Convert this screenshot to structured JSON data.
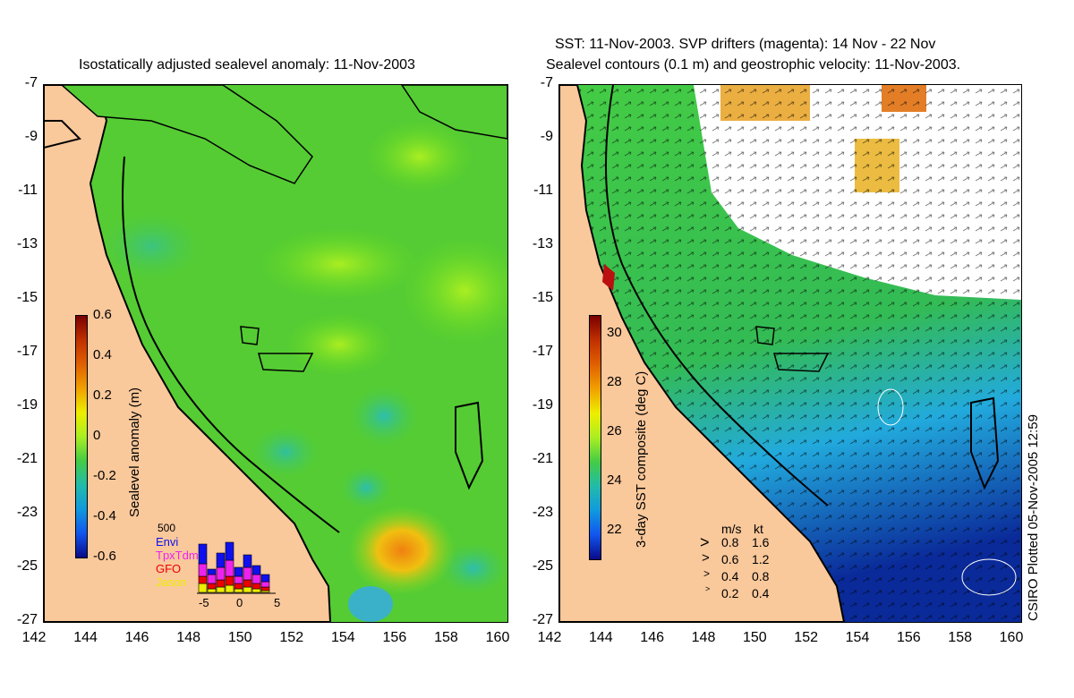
{
  "left_map": {
    "title": "Isostatically adjusted sealevel anomaly: 11-Nov-2003",
    "y_ticks": [
      "-7",
      "-9",
      "-11",
      "-13",
      "-15",
      "-17",
      "-19",
      "-21",
      "-23",
      "-25",
      "-27"
    ],
    "x_ticks": [
      "142",
      "144",
      "146",
      "148",
      "150",
      "152",
      "154",
      "156",
      "158",
      "160"
    ],
    "colorbar": {
      "label": "Sealevel anomaly (m)",
      "ticks": [
        "0.6",
        "0.4",
        "0.2",
        "0",
        "-0.2",
        "-0.4",
        "-0.6"
      ]
    },
    "inset": {
      "top_label": "500",
      "legend": [
        {
          "label": "Envi",
          "color": "#1010ee"
        },
        {
          "label": "TpxTdm",
          "color": "#ee22ee"
        },
        {
          "label": "GFO",
          "color": "#ee0000"
        },
        {
          "label": "Jason",
          "color": "#eeee00"
        }
      ],
      "x_ticks": [
        "-5",
        "0",
        "5"
      ]
    }
  },
  "right_map": {
    "title_line1": "SST: 11-Nov-2003. SVP drifters (magenta): 14 Nov - 22 Nov",
    "title_line2": "Sealevel contours (0.1 m) and geostrophic velocity: 11-Nov-2003.",
    "y_ticks": [
      "-7",
      "-9",
      "-11",
      "-13",
      "-15",
      "-17",
      "-19",
      "-21",
      "-23",
      "-25",
      "-27"
    ],
    "x_ticks": [
      "142",
      "144",
      "146",
      "148",
      "150",
      "152",
      "154",
      "156",
      "158",
      "160"
    ],
    "colorbar": {
      "label": "3-day SST composite (deg C)",
      "ticks": [
        "30",
        "28",
        "26",
        "24",
        "22"
      ]
    },
    "velocity_legend": {
      "header_ms": "m/s",
      "header_kt": "kt",
      "rows": [
        {
          "ms": "0.8",
          "kt": "1.6"
        },
        {
          "ms": "0.6",
          "kt": "1.2"
        },
        {
          "ms": "0.4",
          "kt": "0.8"
        },
        {
          "ms": "0.2",
          "kt": "0.4"
        }
      ]
    },
    "credit": "CSIRO Plotted 05-Nov-2005 12:59"
  },
  "colors": {
    "land": "#f9c89b",
    "sea_green": "#44cc33",
    "white_region": "#ffffff"
  }
}
